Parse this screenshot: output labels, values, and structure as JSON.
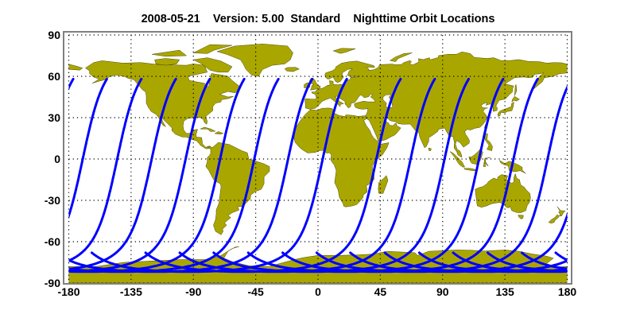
{
  "title": {
    "date": "2008-05-21",
    "version": "Version: 5.00",
    "product": "Standard",
    "name": "Nighttime Orbit Locations"
  },
  "chart_data": {
    "type": "map",
    "projection": "equirectangular",
    "x_ticks": [
      "-180",
      "-135",
      "-90",
      "-45",
      "0",
      "45",
      "90",
      "135",
      "180"
    ],
    "y_ticks": [
      "90",
      "60",
      "30",
      "0",
      "-30",
      "-60",
      "-90"
    ],
    "xlim": [
      -180,
      180
    ],
    "ylim": [
      -90,
      90
    ],
    "grid": "dotted, every 45° longitude and 30° latitude",
    "orbit_tracks": {
      "northern_end_latitude": 58.5,
      "southern_hook_latitude": -68,
      "northern_end_longitudes": [
        -176.5,
        -152.2,
        -127.3,
        -102.4,
        -77.9,
        -53.0,
        -28.3,
        -3.9,
        21.1,
        59.9,
        84.6,
        109.1,
        134.0,
        158.9
      ]
    }
  },
  "colors": {
    "land": "#aaa600",
    "coast": "#4a4a00",
    "orbit": "#0000ff",
    "frame": "#808080",
    "grid": "#000000"
  }
}
